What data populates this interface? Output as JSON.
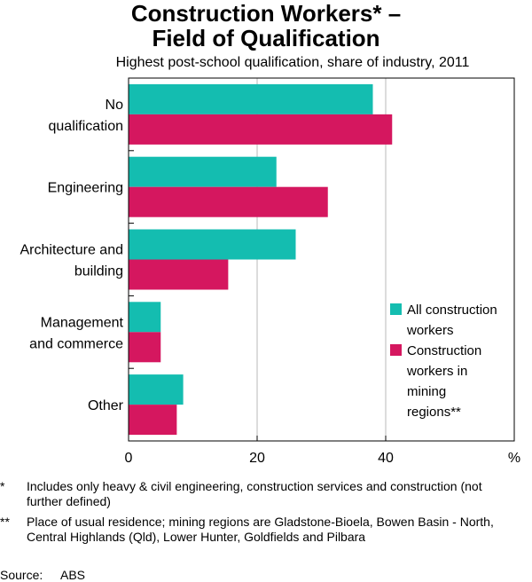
{
  "title_line1": "Construction Workers* –",
  "title_line2": "Field of Qualification",
  "subtitle": "Highest post-school qualification, share of industry, 2011",
  "chart_data": {
    "type": "bar",
    "orientation": "horizontal",
    "categories": [
      [
        "No",
        "qualification"
      ],
      [
        "Engineering"
      ],
      [
        "Architecture and",
        "building"
      ],
      [
        "Management",
        "and commerce"
      ],
      [
        "Other"
      ]
    ],
    "series": [
      {
        "name": "All construction workers",
        "legend_lines": [
          "All construction",
          "workers"
        ],
        "color": "#14bdb0",
        "values": [
          38,
          23,
          26,
          5,
          8.5
        ]
      },
      {
        "name": "Construction workers in mining regions**",
        "legend_lines": [
          "Construction",
          "workers in",
          "mining",
          "regions**"
        ],
        "color": "#d5175f",
        "values": [
          41,
          31,
          15.5,
          5,
          7.5
        ]
      }
    ],
    "xlim": [
      0,
      60
    ],
    "x_ticks": [
      0,
      20,
      40
    ],
    "x_unit": "%",
    "grid": true,
    "legend_position": "right"
  },
  "notes": [
    {
      "mark": "*",
      "text": "Includes only heavy & civil engineering, construction services and construction (not further defined)"
    },
    {
      "mark": "**",
      "text": "Place of usual residence; mining regions are Gladstone-Bioela, Bowen Basin - North, Central Highlands (Qld), Lower Hunter, Goldfields and Pilbara"
    }
  ],
  "source_label": "Source:",
  "source_value": "ABS"
}
